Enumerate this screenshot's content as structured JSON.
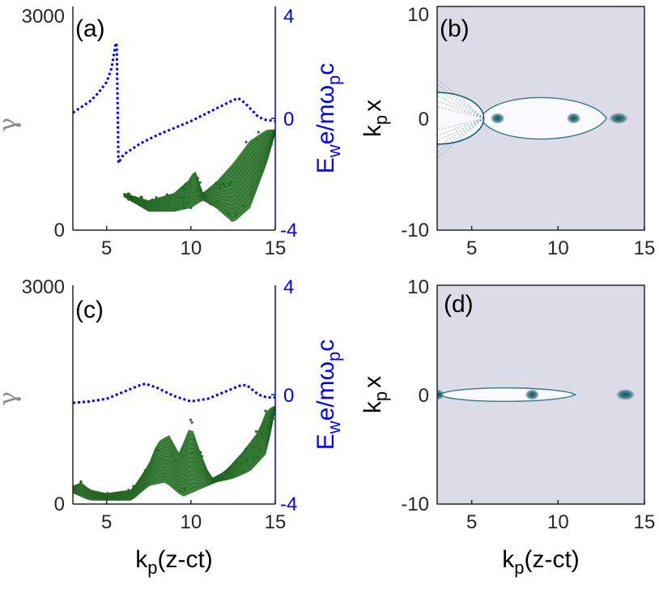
{
  "colors": {
    "field_line": "#0000ff",
    "particles": "#1f6f1f",
    "density_bg": "#dcdce8",
    "density_dark": "#0d5a6a",
    "axes": "#262626"
  },
  "chart_data": [
    {
      "panel": "(a)",
      "type": "scatter",
      "xlabel": "",
      "ylabel_left": "γ",
      "ylabel_right_main": "E",
      "ylabel_right_sub1": "w",
      "ylabel_right_mid": "e/mω",
      "ylabel_right_sub2": "p",
      "ylabel_right_end": "c",
      "xlim": [
        3,
        15
      ],
      "ylim_left": [
        0,
        3000
      ],
      "ylim_right": [
        -4,
        4
      ],
      "xticks": [
        "5",
        "10",
        "15"
      ],
      "yticks_left": [
        "0",
        "3000"
      ],
      "yticks_right": [
        "-4",
        "0",
        "4"
      ],
      "field_line": {
        "name": "E_w",
        "x": [
          3.0,
          4.0,
          4.5,
          5.0,
          5.3,
          5.55,
          5.6,
          5.7,
          6.0,
          7.0,
          8.0,
          9.0,
          10.0,
          11.0,
          12.0,
          12.5,
          12.8,
          13.2,
          13.6,
          14.0,
          14.4,
          15.0
        ],
        "y": [
          0.2,
          0.6,
          0.9,
          1.3,
          1.8,
          2.7,
          2.6,
          -1.6,
          -1.3,
          -0.9,
          -0.6,
          -0.35,
          -0.1,
          0.2,
          0.5,
          0.65,
          0.72,
          0.55,
          0.3,
          0.05,
          -0.05,
          -0.1
        ]
      },
      "particles": {
        "name": "gamma",
        "x_lo": [
          6.0,
          7.5,
          9.0,
          10.0,
          10.7,
          11.5,
          12.5,
          13.5,
          14.5,
          15.0
        ],
        "y_lo": [
          450,
          250,
          250,
          300,
          400,
          300,
          100,
          300,
          900,
          1300
        ],
        "x_hi": [
          6.0,
          7.5,
          9.0,
          10.0,
          10.2,
          10.7,
          11.5,
          12.5,
          13.5,
          14.5,
          15.0
        ],
        "y_hi": [
          500,
          400,
          500,
          700,
          850,
          500,
          650,
          900,
          1200,
          1350,
          1350
        ]
      }
    },
    {
      "panel": "(b)",
      "type": "heatmap",
      "xlabel": "",
      "ylabel_main": "k",
      "ylabel_sub": "p",
      "ylabel_end": "x",
      "xlim": [
        3,
        15
      ],
      "ylim": [
        -10,
        10
      ],
      "xticks": [
        "5",
        "10",
        "15"
      ],
      "yticks": [
        "-10",
        "0",
        "10"
      ],
      "bunches_x": [
        6.5,
        10.9,
        13.5
      ],
      "bubble": {
        "x_start": 5.5,
        "x_end": 12.8,
        "half_width": 2.1
      },
      "first_bubble_end": 5.7
    },
    {
      "panel": "(c)",
      "type": "scatter",
      "xlabel_main": "k",
      "xlabel_sub": "p",
      "xlabel_end": "(z-ct)",
      "ylabel_left": "γ",
      "ylabel_right_main": "E",
      "ylabel_right_sub1": "w",
      "ylabel_right_mid": "e/mω",
      "ylabel_right_sub2": "p",
      "ylabel_right_end": "c",
      "xlim": [
        3,
        15
      ],
      "ylim_left": [
        0,
        3000
      ],
      "ylim_right": [
        -4,
        4
      ],
      "xticks": [
        "5",
        "10",
        "15"
      ],
      "yticks_left": [
        "0",
        "3000"
      ],
      "yticks_right": [
        "-4",
        "0",
        "4"
      ],
      "field_line": {
        "name": "E_w",
        "x": [
          3.0,
          4.0,
          5.0,
          6.0,
          7.0,
          7.3,
          8.0,
          9.0,
          10.0,
          11.0,
          12.0,
          13.0,
          13.3,
          14.0,
          14.5,
          15.0
        ],
        "y": [
          -0.3,
          -0.25,
          -0.15,
          0.1,
          0.35,
          0.4,
          0.25,
          -0.05,
          -0.25,
          -0.15,
          0.1,
          0.35,
          0.35,
          0.0,
          -0.1,
          -0.1
        ]
      },
      "particles": {
        "name": "gamma",
        "x_lo": [
          3.0,
          4.0,
          5.0,
          6.5,
          7.5,
          8.5,
          9.5,
          10.5,
          11.5,
          12.5,
          13.5,
          14.5,
          15.0
        ],
        "y_lo": [
          150,
          50,
          50,
          50,
          250,
          300,
          100,
          200,
          300,
          350,
          450,
          700,
          1300
        ],
        "x_hi": [
          3.0,
          3.5,
          4.0,
          5.0,
          6.5,
          7.5,
          8.0,
          8.7,
          9.3,
          10.0,
          10.5,
          11.2,
          12.0,
          13.0,
          14.0,
          14.5,
          15.0
        ],
        "y_hi": [
          250,
          300,
          200,
          150,
          200,
          550,
          850,
          950,
          700,
          1100,
          750,
          350,
          450,
          700,
          1000,
          1300,
          1350
        ]
      }
    },
    {
      "panel": "(d)",
      "type": "heatmap",
      "xlabel_main": "k",
      "xlabel_sub": "p",
      "xlabel_end": "(z-ct)",
      "ylabel_main": "k",
      "ylabel_sub": "p",
      "ylabel_end": "x",
      "xlim": [
        3,
        15
      ],
      "ylim": [
        -10,
        10
      ],
      "xticks": [
        "5",
        "10",
        "15"
      ],
      "yticks": [
        "-10",
        "0",
        "10"
      ],
      "bunches_x": [
        3.0,
        8.5,
        13.9
      ],
      "bubble": {
        "x_start": 3.1,
        "x_end": 11.0,
        "half_width": 0.7
      }
    }
  ]
}
